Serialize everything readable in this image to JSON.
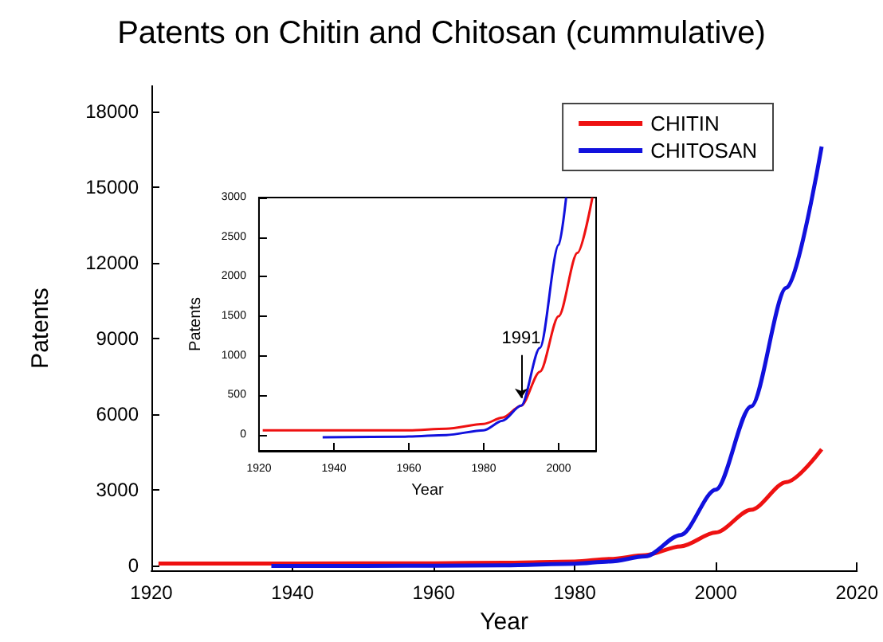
{
  "chart_data": [
    {
      "type": "line",
      "title": "Patents on Chitin and Chitosan (cummulative)",
      "xlabel": "Year",
      "ylabel": "Patents",
      "xlim": [
        1920,
        2020
      ],
      "xticks": [
        1920,
        1940,
        1960,
        1980,
        2000,
        2020
      ],
      "ylim": [
        -200,
        19000
      ],
      "yticks": [
        0,
        3000,
        6000,
        9000,
        12000,
        15000,
        18000
      ],
      "legend": "top right",
      "series": [
        {
          "name": "CHITIN",
          "color": "#ee1111",
          "x": [
            1921,
            1940,
            1960,
            1970,
            1980,
            1985,
            1990,
            1995,
            2000,
            2005,
            2010,
            2015
          ],
          "values": [
            70,
            70,
            80,
            100,
            150,
            250,
            400,
            750,
            1300,
            2200,
            3300,
            4600
          ]
        },
        {
          "name": "CHITOSAN",
          "color": "#1111dd",
          "x": [
            1937,
            1960,
            1970,
            1980,
            1985,
            1990,
            1995,
            2000,
            2005,
            2010,
            2015
          ],
          "values": [
            -30,
            -20,
            0,
            60,
            150,
            350,
            1200,
            3000,
            6300,
            11000,
            16600
          ]
        }
      ]
    },
    {
      "type": "line",
      "xlabel": "Year",
      "ylabel": "Patents",
      "xlim": [
        1920,
        2010
      ],
      "xticks": [
        1920,
        1940,
        1960,
        1980,
        2000
      ],
      "ylim": [
        -200,
        3000
      ],
      "yticks": [
        0,
        500,
        1000,
        1500,
        2000,
        2500,
        3000
      ],
      "annotations": [
        {
          "text": "1991",
          "x": 1990,
          "y": 370
        }
      ],
      "series": [
        {
          "color": "#ee1111",
          "x": [
            1921,
            1940,
            1960,
            1970,
            1980,
            1985,
            1990,
            1995,
            2000,
            2005,
            2009
          ],
          "values": [
            60,
            60,
            60,
            80,
            140,
            220,
            370,
            800,
            1500,
            2300,
            3000
          ]
        },
        {
          "color": "#1111dd",
          "x": [
            1937,
            1960,
            1970,
            1980,
            1985,
            1990,
            1995,
            2000,
            2002
          ],
          "values": [
            -30,
            -20,
            0,
            60,
            180,
            370,
            1100,
            2400,
            3000
          ]
        }
      ]
    }
  ]
}
